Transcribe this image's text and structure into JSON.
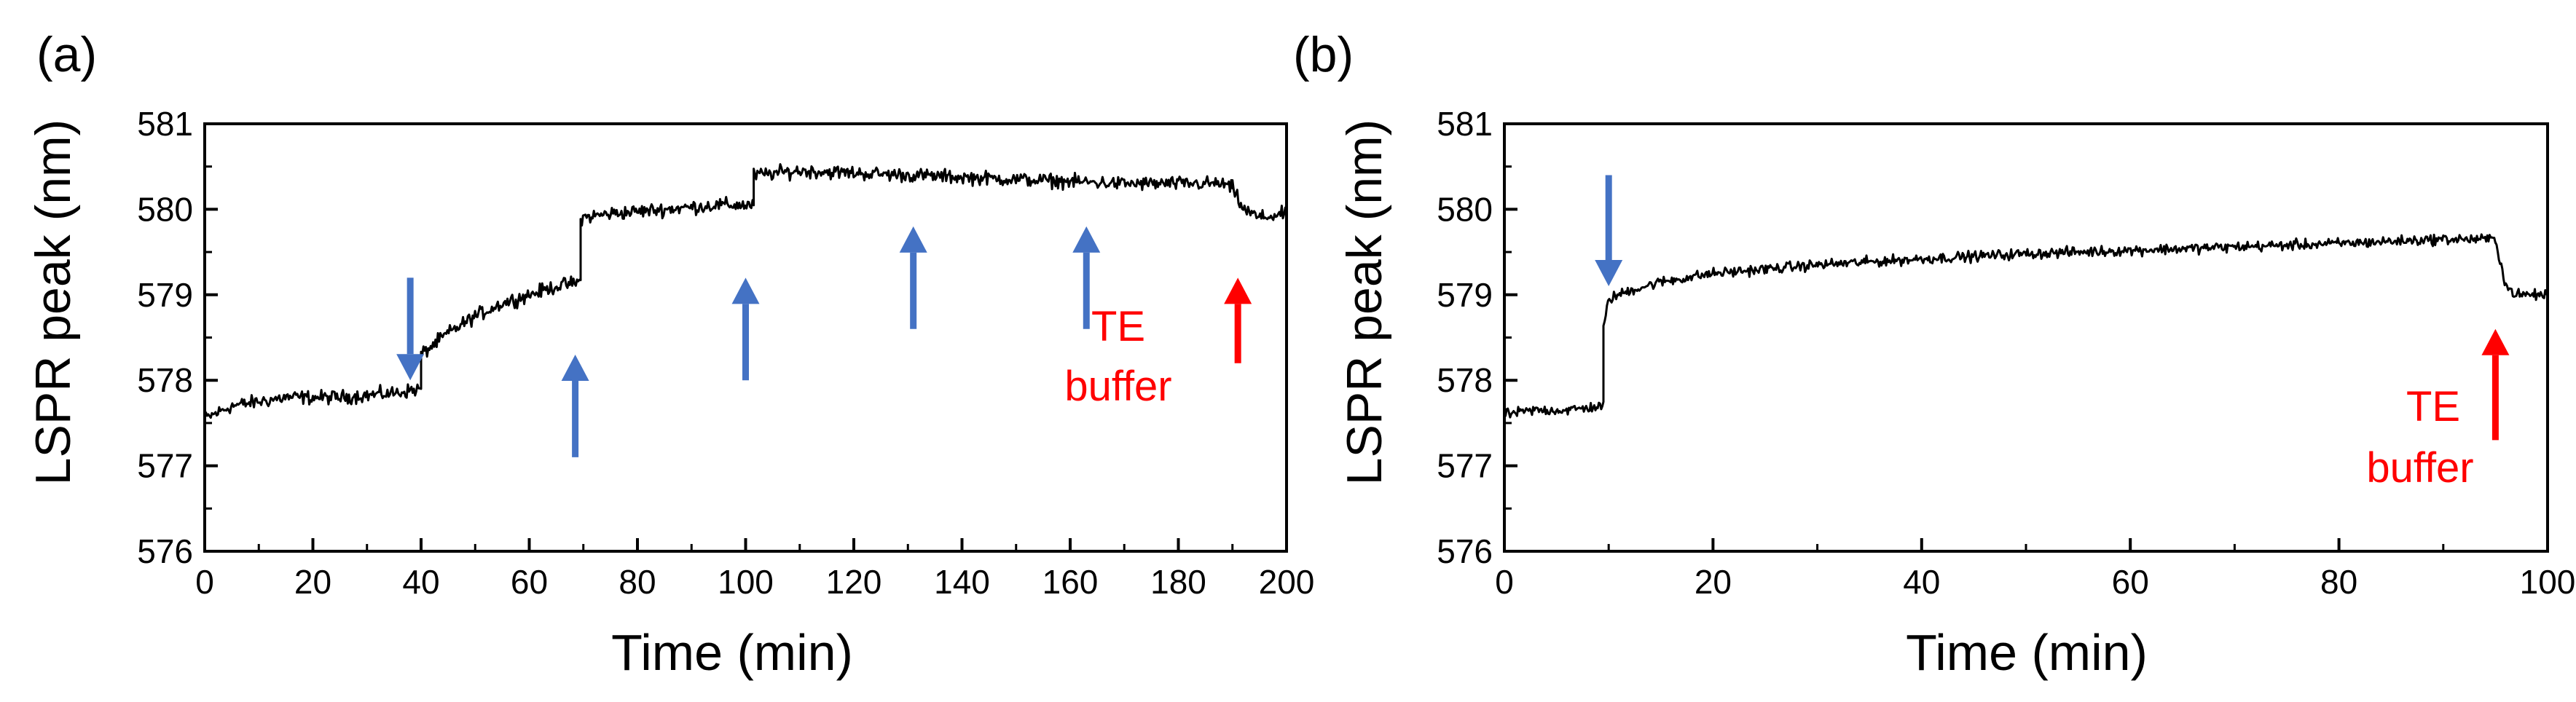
{
  "chart_data": [
    {
      "type": "line",
      "panel_label": "(a)",
      "xlabel": "Time (min)",
      "ylabel": "LSPR peak (nm)",
      "xlim": [
        0,
        200
      ],
      "ylim": [
        576,
        581
      ],
      "xticks": [
        0,
        20,
        40,
        60,
        80,
        100,
        120,
        140,
        160,
        180,
        200
      ],
      "yticks": [
        576,
        577,
        578,
        579,
        580,
        581
      ],
      "series": [
        {
          "name": "LSPR peak",
          "color": "#000000",
          "segments": [
            {
              "t": [
                0,
                5,
                15,
                25,
                35,
                40
              ],
              "y": [
                577.55,
                577.7,
                577.8,
                577.8,
                577.85,
                577.9
              ]
            },
            {
              "t": [
                40,
                45,
                50,
                55,
                60,
                65,
                69.5
              ],
              "y": [
                578.3,
                578.55,
                578.75,
                578.9,
                579.0,
                579.1,
                579.15
              ]
            },
            {
              "t": [
                69.5,
                75,
                85,
                95,
                101.5
              ],
              "y": [
                579.9,
                579.95,
                580.0,
                580.05,
                580.05
              ]
            },
            {
              "t": [
                101.5,
                110,
                130,
                150,
                170,
                188,
                190
              ],
              "y": [
                580.4,
                580.45,
                580.4,
                580.35,
                580.3,
                580.3,
                580.25
              ]
            },
            {
              "t": [
                190,
                192,
                195,
                200
              ],
              "y": [
                580.25,
                580.0,
                579.9,
                579.95
              ]
            }
          ],
          "noise": 0.08
        }
      ],
      "annotations": [
        {
          "kind": "arrow",
          "direction": "down",
          "color": "#4472c4",
          "t": 38,
          "y_from": 579.2,
          "y_to": 578.0
        },
        {
          "kind": "arrow",
          "direction": "up",
          "color": "#4472c4",
          "t": 68.5,
          "y_from": 577.1,
          "y_to": 578.3
        },
        {
          "kind": "arrow",
          "direction": "up",
          "color": "#4472c4",
          "t": 100,
          "y_from": 578.0,
          "y_to": 579.2
        },
        {
          "kind": "arrow",
          "direction": "up",
          "color": "#4472c4",
          "t": 131,
          "y_from": 578.6,
          "y_to": 579.8
        },
        {
          "kind": "arrow",
          "direction": "up",
          "color": "#4472c4",
          "t": 163,
          "y_from": 578.6,
          "y_to": 579.8
        },
        {
          "kind": "arrow",
          "direction": "up",
          "color": "#ff0000",
          "t": 191,
          "y_from": 578.2,
          "y_to": 579.2
        }
      ],
      "label_lines": [
        "TE",
        "buffer"
      ],
      "label_color": "#ff0000"
    },
    {
      "type": "line",
      "panel_label": "(b)",
      "xlabel": "Time (min)",
      "ylabel": "LSPR peak (nm)",
      "xlim": [
        0,
        100
      ],
      "ylim": [
        576,
        581
      ],
      "xticks": [
        0,
        20,
        40,
        60,
        80,
        100
      ],
      "yticks": [
        576,
        577,
        578,
        579,
        580,
        581
      ],
      "series": [
        {
          "name": "LSPR peak",
          "color": "#000000",
          "segments": [
            {
              "t": [
                0,
                3,
                6,
                9.5
              ],
              "y": [
                577.6,
                577.65,
                577.65,
                577.7
              ]
            },
            {
              "t": [
                9.5,
                10,
                12,
                15,
                20,
                30,
                40,
                50,
                60,
                70,
                80,
                90,
                95
              ],
              "y": [
                578.6,
                578.95,
                579.05,
                579.15,
                579.25,
                579.35,
                579.42,
                579.48,
                579.52,
                579.56,
                579.6,
                579.65,
                579.65
              ]
            },
            {
              "t": [
                95,
                96,
                97,
                100
              ],
              "y": [
                579.65,
                579.1,
                579.0,
                579.0
              ]
            }
          ],
          "noise": 0.06
        }
      ],
      "annotations": [
        {
          "kind": "arrow",
          "direction": "down",
          "color": "#4472c4",
          "t": 10,
          "y_from": 580.4,
          "y_to": 579.1
        },
        {
          "kind": "arrow",
          "direction": "up",
          "color": "#ff0000",
          "t": 95,
          "y_from": 577.3,
          "y_to": 578.6
        }
      ],
      "label_lines": [
        "TE",
        "buffer"
      ],
      "label_color": "#ff0000"
    }
  ]
}
